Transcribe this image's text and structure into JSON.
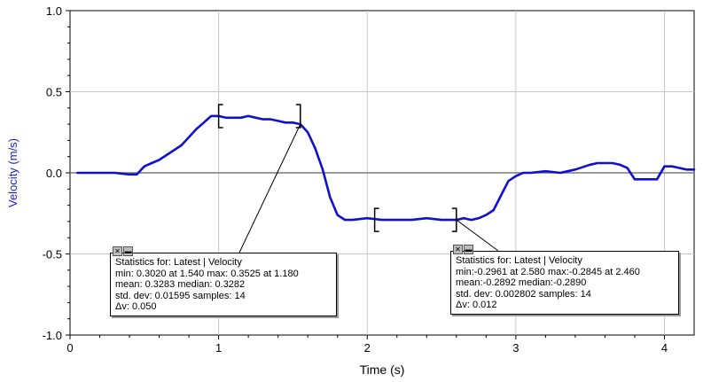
{
  "chart_data": {
    "type": "line",
    "xlabel": "Time (s)",
    "ylabel": "Velocity (m/s)",
    "xlim": [
      0,
      4.2
    ],
    "ylim": [
      -1.0,
      1.0
    ],
    "x_ticks": [
      "0",
      "1",
      "2",
      "3",
      "4"
    ],
    "y_ticks": [
      "1.0",
      "0.5",
      "0.0",
      "-0.5",
      "-1.0"
    ],
    "grid": true,
    "series_color": "#1010d0",
    "series": [
      {
        "x": [
          0.05,
          0.1,
          0.2,
          0.3,
          0.4,
          0.45,
          0.5,
          0.55,
          0.6,
          0.65,
          0.7,
          0.75,
          0.8,
          0.85,
          0.9,
          0.95,
          1.0,
          1.05,
          1.1,
          1.15,
          1.2,
          1.25,
          1.3,
          1.35,
          1.4,
          1.45,
          1.5,
          1.55,
          1.6,
          1.65,
          1.7,
          1.75,
          1.8,
          1.85,
          1.9,
          2.0,
          2.1,
          2.2,
          2.3,
          2.4,
          2.5,
          2.55,
          2.6,
          2.65,
          2.7,
          2.75,
          2.8,
          2.85,
          2.9,
          2.95,
          3.0,
          3.05,
          3.1,
          3.2,
          3.3,
          3.4,
          3.5,
          3.55,
          3.6,
          3.65,
          3.7,
          3.75,
          3.8,
          3.85,
          3.9,
          3.95,
          4.0,
          4.05,
          4.1,
          4.15,
          4.2
        ],
        "y": [
          0.0,
          0.0,
          0.0,
          0.0,
          -0.01,
          -0.01,
          0.04,
          0.06,
          0.08,
          0.11,
          0.14,
          0.17,
          0.22,
          0.27,
          0.31,
          0.35,
          0.35,
          0.34,
          0.34,
          0.34,
          0.35,
          0.34,
          0.33,
          0.33,
          0.32,
          0.31,
          0.31,
          0.3,
          0.25,
          0.15,
          0.02,
          -0.15,
          -0.26,
          -0.29,
          -0.29,
          -0.28,
          -0.29,
          -0.29,
          -0.29,
          -0.28,
          -0.29,
          -0.29,
          -0.29,
          -0.28,
          -0.29,
          -0.28,
          -0.26,
          -0.23,
          -0.14,
          -0.05,
          -0.02,
          0.0,
          0.0,
          0.01,
          0.0,
          0.02,
          0.05,
          0.06,
          0.06,
          0.06,
          0.05,
          0.03,
          -0.04,
          -0.04,
          -0.04,
          -0.04,
          0.04,
          0.04,
          0.03,
          0.02,
          0.02
        ]
      }
    ],
    "brackets": [
      {
        "from": 1.0,
        "to": 1.55,
        "y": 0.35
      },
      {
        "from": 2.05,
        "to": 2.6,
        "y": -0.29
      }
    ],
    "annotations": [
      {
        "anchor_x": 1.55,
        "anchor_y": 0.3
      },
      {
        "anchor_x": 2.6,
        "anchor_y": -0.29
      }
    ]
  },
  "stats": [
    {
      "line1": "Statistics for: Latest | Velocity",
      "line2": "min: 0.3020 at 1.540 max: 0.3525 at 1.180",
      "line3": "mean: 0.3283 median: 0.3282",
      "line4": "std. dev: 0.01595 samples: 14",
      "line5": "Δv: 0.050"
    },
    {
      "line1": "Statistics for: Latest | Velocity",
      "line2": "min:-0.2961 at 2.580 max:-0.2845 at 2.460",
      "line3": "mean:-0.2892 median:-0.2890",
      "line4": "std. dev: 0.002802 samples: 14",
      "line5": "Δv: 0.012"
    }
  ],
  "icons": {
    "close": "✕",
    "minimize": "▬"
  }
}
